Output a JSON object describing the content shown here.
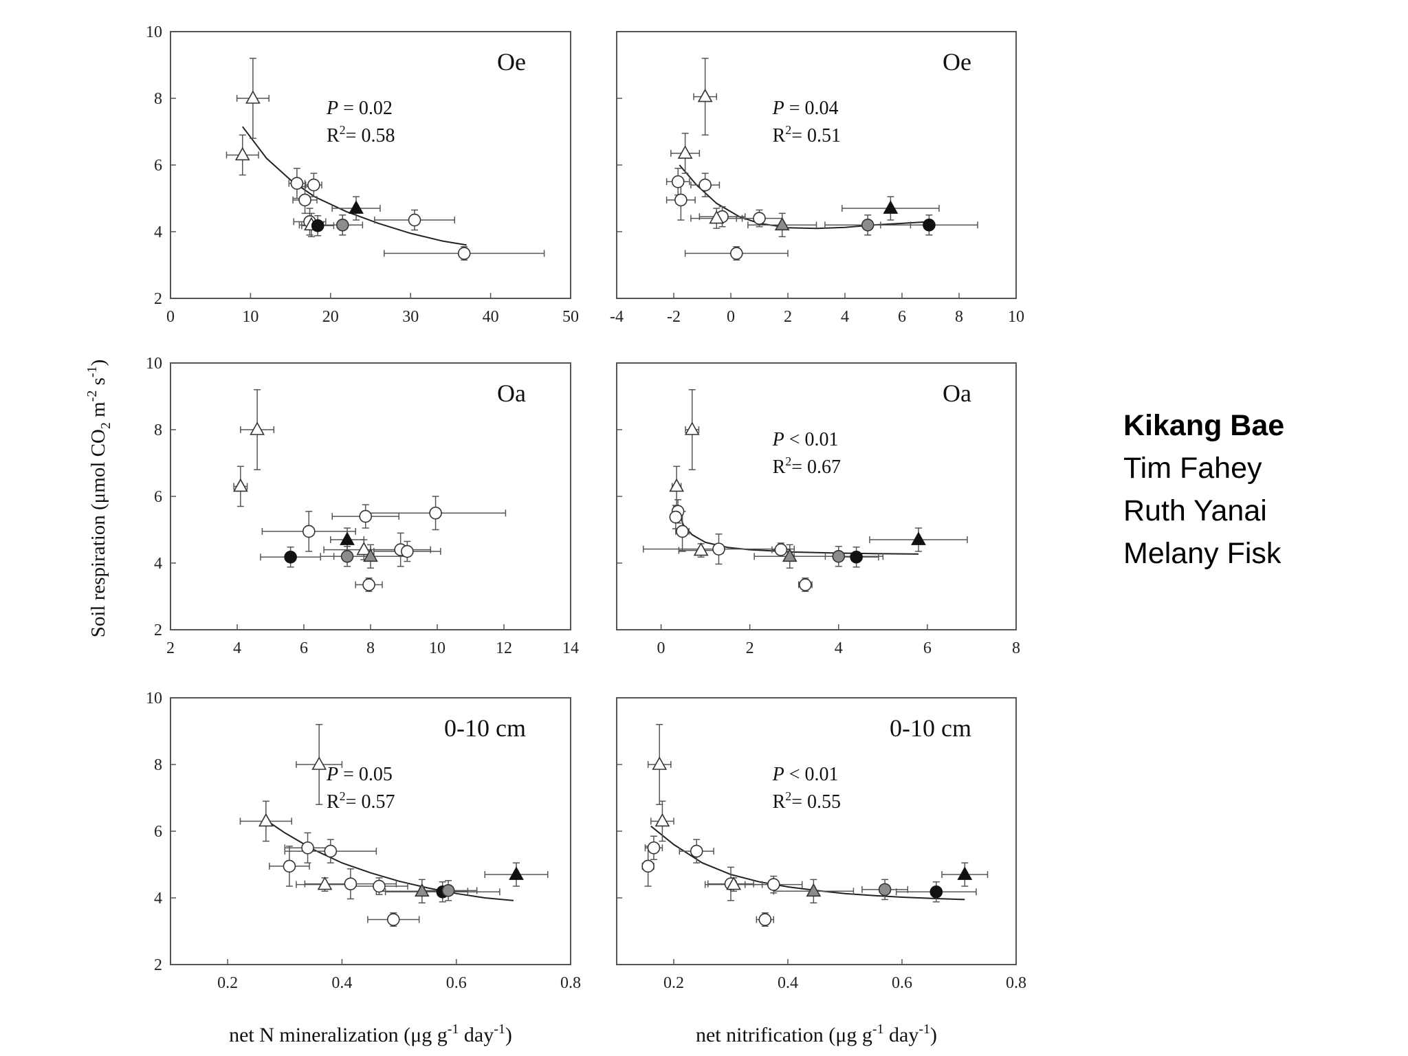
{
  "chart_data": {
    "type": "scatter",
    "y_label": {
      "pre": "Soil respiration (μmol CO",
      "sub": "2",
      "mid": " m",
      "sup1": "-2",
      "mid2": " s",
      "sup2": "-1",
      "post": ")"
    },
    "column_x_labels": [
      {
        "pre": "net N mineralization (μg g",
        "sup1": "-1",
        "mid": " day",
        "sup2": "-1",
        "post": ")"
      },
      {
        "pre": "net nitrification (μg g",
        "sup1": "-1",
        "mid": " day",
        "sup2": "-1",
        "post": ")"
      }
    ],
    "ylim": [
      2,
      10
    ],
    "yticks": [
      "2",
      "4",
      "6",
      "8",
      "10"
    ],
    "panels": [
      {
        "id": "oe-mineralization",
        "label": "Oe",
        "col": 0,
        "row": 0,
        "xlim": [
          0,
          50
        ],
        "xticks": [
          "0",
          "10",
          "20",
          "30",
          "40",
          "50"
        ],
        "stats": {
          "p": "= 0.02",
          "r2": "= 0.58"
        },
        "fit": [
          [
            9,
            7.15
          ],
          [
            12,
            6.2
          ],
          [
            15,
            5.55
          ],
          [
            18,
            5.05
          ],
          [
            22,
            4.6
          ],
          [
            26,
            4.25
          ],
          [
            30,
            3.95
          ],
          [
            34,
            3.72
          ],
          [
            37,
            3.6
          ]
        ],
        "points": [
          {
            "x": 9,
            "y": 6.3,
            "xe": 2,
            "ye": 0.6,
            "m": "tri",
            "f": "white"
          },
          {
            "x": 10.3,
            "y": 8.0,
            "xe": 2,
            "ye": 1.2,
            "m": "tri",
            "f": "white"
          },
          {
            "x": 15.8,
            "y": 5.45,
            "xe": 1,
            "ye": 0.45,
            "m": "circ",
            "f": "white"
          },
          {
            "x": 17.9,
            "y": 5.4,
            "xe": 1,
            "ye": 0.35,
            "m": "circ",
            "f": "white"
          },
          {
            "x": 16.8,
            "y": 4.95,
            "xe": 1.5,
            "ye": 0.4,
            "m": "circ",
            "f": "white"
          },
          {
            "x": 17.4,
            "y": 4.3,
            "xe": 2,
            "ye": 0.4,
            "m": "circ",
            "f": "white"
          },
          {
            "x": 17.6,
            "y": 4.2,
            "xe": 1.5,
            "ye": 0.35,
            "m": "tri",
            "f": "white"
          },
          {
            "x": 18.4,
            "y": 4.18,
            "xe": 2,
            "ye": 0.3,
            "m": "circ",
            "f": "black"
          },
          {
            "x": 21.5,
            "y": 4.2,
            "xe": 2.5,
            "ye": 0.3,
            "m": "circ",
            "f": "gray"
          },
          {
            "x": 23.2,
            "y": 4.7,
            "xe": 3,
            "ye": 0.35,
            "m": "tri",
            "f": "black"
          },
          {
            "x": 30.5,
            "y": 4.35,
            "xe": 5,
            "ye": 0.3,
            "m": "circ",
            "f": "white"
          },
          {
            "x": 36.7,
            "y": 3.35,
            "xe": 10,
            "ye": 0.2,
            "m": "circ",
            "f": "white"
          }
        ]
      },
      {
        "id": "oe-nitrification",
        "label": "Oe",
        "col": 1,
        "row": 0,
        "xlim": [
          -4,
          10
        ],
        "xticks": [
          "-4",
          "-2",
          "0",
          "2",
          "4",
          "6",
          "8",
          "10"
        ],
        "stats": {
          "p": "= 0.04",
          "r2": "= 0.51"
        },
        "fit": [
          [
            -1.8,
            6.0
          ],
          [
            -1.2,
            5.4
          ],
          [
            -0.5,
            4.85
          ],
          [
            0.3,
            4.45
          ],
          [
            1,
            4.25
          ],
          [
            2,
            4.12
          ],
          [
            3,
            4.1
          ],
          [
            4,
            4.13
          ],
          [
            5,
            4.2
          ],
          [
            6,
            4.25
          ],
          [
            7,
            4.3
          ]
        ],
        "points": [
          {
            "x": -1.6,
            "y": 6.35,
            "xe": 0.5,
            "ye": 0.6,
            "m": "tri",
            "f": "white"
          },
          {
            "x": -0.9,
            "y": 8.05,
            "xe": 0.4,
            "ye": 1.15,
            "m": "tri",
            "f": "white"
          },
          {
            "x": -1.85,
            "y": 5.5,
            "xe": 0.4,
            "ye": 0.4,
            "m": "circ",
            "f": "white"
          },
          {
            "x": -0.9,
            "y": 5.4,
            "xe": 0.5,
            "ye": 0.35,
            "m": "circ",
            "f": "white"
          },
          {
            "x": -1.75,
            "y": 4.95,
            "xe": 0.5,
            "ye": 0.6,
            "m": "circ",
            "f": "white"
          },
          {
            "x": -0.3,
            "y": 4.45,
            "xe": 0.8,
            "ye": 0.3,
            "m": "circ",
            "f": "white"
          },
          {
            "x": -0.5,
            "y": 4.4,
            "xe": 0.9,
            "ye": 0.3,
            "m": "tri",
            "f": "white"
          },
          {
            "x": 1.0,
            "y": 4.4,
            "xe": 0.8,
            "ye": 0.25,
            "m": "circ",
            "f": "white"
          },
          {
            "x": 1.8,
            "y": 4.2,
            "xe": 1.2,
            "ye": 0.35,
            "m": "tri",
            "f": "gray"
          },
          {
            "x": 0.2,
            "y": 3.35,
            "xe": 1.8,
            "ye": 0.2,
            "m": "circ",
            "f": "white"
          },
          {
            "x": 4.8,
            "y": 4.2,
            "xe": 1.5,
            "ye": 0.3,
            "m": "circ",
            "f": "gray"
          },
          {
            "x": 5.6,
            "y": 4.7,
            "xe": 1.7,
            "ye": 0.35,
            "m": "tri",
            "f": "black"
          },
          {
            "x": 6.95,
            "y": 4.2,
            "xe": 1.7,
            "ye": 0.3,
            "m": "circ",
            "f": "black"
          }
        ]
      },
      {
        "id": "oa-mineralization",
        "label": "Oa",
        "col": 0,
        "row": 1,
        "xlim": [
          2,
          14
        ],
        "xticks": [
          "2",
          "4",
          "6",
          "8",
          "10",
          "12",
          "14"
        ],
        "stats": null,
        "fit": null,
        "points": [
          {
            "x": 4.1,
            "y": 6.3,
            "xe": 0.2,
            "ye": 0.6,
            "m": "tri",
            "f": "white"
          },
          {
            "x": 4.6,
            "y": 8.0,
            "xe": 0.5,
            "ye": 1.2,
            "m": "tri",
            "f": "white"
          },
          {
            "x": 6.15,
            "y": 4.95,
            "xe": 1.4,
            "ye": 0.6,
            "m": "circ",
            "f": "white"
          },
          {
            "x": 7.85,
            "y": 5.4,
            "xe": 1.0,
            "ye": 0.35,
            "m": "circ",
            "f": "white"
          },
          {
            "x": 9.95,
            "y": 5.5,
            "xe": 2.1,
            "ye": 0.5,
            "m": "circ",
            "f": "white"
          },
          {
            "x": 5.6,
            "y": 4.18,
            "xe": 0.9,
            "ye": 0.3,
            "m": "circ",
            "f": "black"
          },
          {
            "x": 7.3,
            "y": 4.7,
            "xe": 0.5,
            "ye": 0.35,
            "m": "tri",
            "f": "black"
          },
          {
            "x": 7.8,
            "y": 4.4,
            "xe": 1.2,
            "ye": 0.3,
            "m": "tri",
            "f": "white"
          },
          {
            "x": 7.3,
            "y": 4.2,
            "xe": 0.8,
            "ye": 0.3,
            "m": "circ",
            "f": "gray"
          },
          {
            "x": 8.0,
            "y": 4.2,
            "xe": 1.1,
            "ye": 0.35,
            "m": "tri",
            "f": "gray"
          },
          {
            "x": 8.9,
            "y": 4.4,
            "xe": 0.9,
            "ye": 0.5,
            "m": "circ",
            "f": "white"
          },
          {
            "x": 9.1,
            "y": 4.35,
            "xe": 1.0,
            "ye": 0.3,
            "m": "circ",
            "f": "white"
          },
          {
            "x": 7.95,
            "y": 3.35,
            "xe": 0.4,
            "ye": 0.2,
            "m": "circ",
            "f": "white"
          }
        ]
      },
      {
        "id": "oa-nitrification",
        "label": "Oa",
        "col": 1,
        "row": 1,
        "xlim": [
          -1,
          8
        ],
        "xticks": [
          "0",
          "2",
          "4",
          "6",
          "8"
        ],
        "stats": {
          "p": "< 0.01",
          "r2": "= 0.67"
        },
        "fit": [
          [
            0.38,
            5.65
          ],
          [
            0.5,
            5.15
          ],
          [
            0.7,
            4.85
          ],
          [
            1,
            4.62
          ],
          [
            1.5,
            4.47
          ],
          [
            2,
            4.4
          ],
          [
            3,
            4.33
          ],
          [
            4,
            4.3
          ],
          [
            5,
            4.28
          ],
          [
            5.8,
            4.27
          ]
        ],
        "points": [
          {
            "x": 0.35,
            "y": 6.3,
            "xe": 0.1,
            "ye": 0.6,
            "m": "tri",
            "f": "white"
          },
          {
            "x": 0.7,
            "y": 8.0,
            "xe": 0.15,
            "ye": 1.2,
            "m": "tri",
            "f": "white"
          },
          {
            "x": 0.38,
            "y": 5.55,
            "xe": 0.1,
            "ye": 0.35,
            "m": "circ",
            "f": "white"
          },
          {
            "x": 0.33,
            "y": 5.38,
            "xe": 0.1,
            "ye": 0.35,
            "m": "circ",
            "f": "white"
          },
          {
            "x": 0.48,
            "y": 4.95,
            "xe": 0.15,
            "ye": 0.6,
            "m": "circ",
            "f": "white"
          },
          {
            "x": 0.9,
            "y": 4.38,
            "xe": 0.5,
            "ye": 0.2,
            "m": "tri",
            "f": "white"
          },
          {
            "x": 1.3,
            "y": 4.42,
            "xe": 1.7,
            "ye": 0.45,
            "m": "circ",
            "f": "white"
          },
          {
            "x": 2.7,
            "y": 4.4,
            "xe": 0.2,
            "ye": 0.2,
            "m": "circ",
            "f": "white"
          },
          {
            "x": 2.9,
            "y": 4.2,
            "xe": 0.8,
            "ye": 0.35,
            "m": "tri",
            "f": "gray"
          },
          {
            "x": 3.25,
            "y": 3.35,
            "xe": 0.15,
            "ye": 0.2,
            "m": "circ",
            "f": "white"
          },
          {
            "x": 4.0,
            "y": 4.2,
            "xe": 1.0,
            "ye": 0.3,
            "m": "circ",
            "f": "gray"
          },
          {
            "x": 4.4,
            "y": 4.18,
            "xe": 0.5,
            "ye": 0.3,
            "m": "circ",
            "f": "black"
          },
          {
            "x": 5.8,
            "y": 4.7,
            "xe": 1.1,
            "ye": 0.35,
            "m": "tri",
            "f": "black"
          }
        ]
      },
      {
        "id": "depth-mineralization",
        "label": "0-10 cm",
        "col": 0,
        "row": 2,
        "xlim": [
          0.1,
          0.8
        ],
        "xticks": [
          "0.2",
          "0.4",
          "0.6",
          "0.8"
        ],
        "stats": {
          "p": "= 0.05",
          "r2": "= 0.57"
        },
        "fit": [
          [
            0.27,
            6.3
          ],
          [
            0.3,
            5.95
          ],
          [
            0.35,
            5.45
          ],
          [
            0.4,
            5.05
          ],
          [
            0.45,
            4.75
          ],
          [
            0.5,
            4.5
          ],
          [
            0.55,
            4.3
          ],
          [
            0.6,
            4.13
          ],
          [
            0.65,
            4.0
          ],
          [
            0.7,
            3.92
          ]
        ],
        "points": [
          {
            "x": 0.267,
            "y": 6.3,
            "xe": 0.045,
            "ye": 0.6,
            "m": "tri",
            "f": "white"
          },
          {
            "x": 0.36,
            "y": 8.0,
            "xe": 0.04,
            "ye": 1.2,
            "m": "tri",
            "f": "white"
          },
          {
            "x": 0.34,
            "y": 5.5,
            "xe": 0.04,
            "ye": 0.45,
            "m": "circ",
            "f": "white"
          },
          {
            "x": 0.38,
            "y": 5.4,
            "xe": 0.08,
            "ye": 0.35,
            "m": "circ",
            "f": "white"
          },
          {
            "x": 0.308,
            "y": 4.95,
            "xe": 0.035,
            "ye": 0.6,
            "m": "circ",
            "f": "white"
          },
          {
            "x": 0.37,
            "y": 4.4,
            "xe": 0.05,
            "ye": 0.2,
            "m": "tri",
            "f": "white"
          },
          {
            "x": 0.415,
            "y": 4.42,
            "xe": 0.08,
            "ye": 0.45,
            "m": "circ",
            "f": "white"
          },
          {
            "x": 0.465,
            "y": 4.35,
            "xe": 0.05,
            "ye": 0.25,
            "m": "circ",
            "f": "white"
          },
          {
            "x": 0.49,
            "y": 3.35,
            "xe": 0.045,
            "ye": 0.2,
            "m": "circ",
            "f": "white"
          },
          {
            "x": 0.54,
            "y": 4.2,
            "xe": 0.08,
            "ye": 0.35,
            "m": "tri",
            "f": "gray"
          },
          {
            "x": 0.576,
            "y": 4.18,
            "xe": 0.1,
            "ye": 0.3,
            "m": "circ",
            "f": "black"
          },
          {
            "x": 0.586,
            "y": 4.22,
            "xe": 0.05,
            "ye": 0.3,
            "m": "circ",
            "f": "gray"
          },
          {
            "x": 0.705,
            "y": 4.7,
            "xe": 0.055,
            "ye": 0.35,
            "m": "tri",
            "f": "black"
          }
        ]
      },
      {
        "id": "depth-nitrification",
        "label": "0-10 cm",
        "col": 1,
        "row": 2,
        "xlim": [
          0.1,
          0.8
        ],
        "xticks": [
          "0.2",
          "0.4",
          "0.6",
          "0.8"
        ],
        "stats": {
          "p": "< 0.01",
          "r2": "= 0.55"
        },
        "fit": [
          [
            0.16,
            6.15
          ],
          [
            0.2,
            5.6
          ],
          [
            0.25,
            5.05
          ],
          [
            0.3,
            4.7
          ],
          [
            0.35,
            4.48
          ],
          [
            0.4,
            4.33
          ],
          [
            0.45,
            4.22
          ],
          [
            0.5,
            4.13
          ],
          [
            0.55,
            4.07
          ],
          [
            0.6,
            4.02
          ],
          [
            0.66,
            3.98
          ],
          [
            0.71,
            3.95
          ]
        ],
        "points": [
          {
            "x": 0.18,
            "y": 6.3,
            "xe": 0.02,
            "ye": 0.6,
            "m": "tri",
            "f": "white"
          },
          {
            "x": 0.175,
            "y": 8.0,
            "xe": 0.02,
            "ye": 1.2,
            "m": "tri",
            "f": "white"
          },
          {
            "x": 0.165,
            "y": 5.5,
            "xe": 0.015,
            "ye": 0.35,
            "m": "circ",
            "f": "white"
          },
          {
            "x": 0.155,
            "y": 4.95,
            "xe": 0.01,
            "ye": 0.6,
            "m": "circ",
            "f": "white"
          },
          {
            "x": 0.24,
            "y": 5.4,
            "xe": 0.03,
            "ye": 0.35,
            "m": "circ",
            "f": "white"
          },
          {
            "x": 0.3,
            "y": 4.42,
            "xe": 0.04,
            "ye": 0.5,
            "m": "circ",
            "f": "white"
          },
          {
            "x": 0.305,
            "y": 4.4,
            "xe": 0.05,
            "ye": 0.2,
            "m": "tri",
            "f": "white"
          },
          {
            "x": 0.375,
            "y": 4.4,
            "xe": 0.05,
            "ye": 0.25,
            "m": "circ",
            "f": "white"
          },
          {
            "x": 0.36,
            "y": 3.35,
            "xe": 0.015,
            "ye": 0.2,
            "m": "circ",
            "f": "white"
          },
          {
            "x": 0.445,
            "y": 4.2,
            "xe": 0.07,
            "ye": 0.35,
            "m": "tri",
            "f": "gray"
          },
          {
            "x": 0.57,
            "y": 4.25,
            "xe": 0.04,
            "ye": 0.3,
            "m": "circ",
            "f": "gray"
          },
          {
            "x": 0.66,
            "y": 4.18,
            "xe": 0.07,
            "ye": 0.3,
            "m": "circ",
            "f": "black"
          },
          {
            "x": 0.71,
            "y": 4.7,
            "xe": 0.04,
            "ye": 0.35,
            "m": "tri",
            "f": "black"
          }
        ]
      }
    ]
  },
  "authors": [
    "Kikang Bae",
    "Tim Fahey",
    "Ruth Yanai",
    "Melany Fisk"
  ],
  "colors": {
    "white": "#ffffff",
    "gray": "#8c8c8c",
    "black": "#111111",
    "frame": "#555555",
    "errbar": "#555555"
  }
}
